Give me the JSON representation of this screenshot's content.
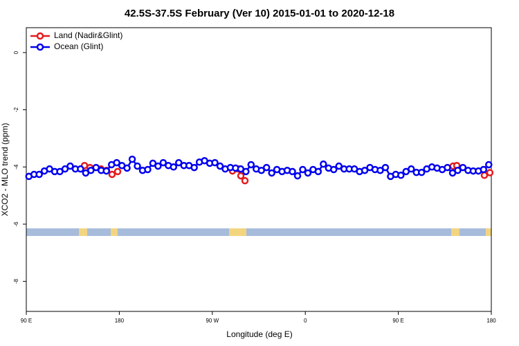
{
  "chart_data": {
    "type": "line",
    "title": "42.5S-37.5S February (Ver 10)   2015-01-01 to 2020-12-18",
    "xlabel": "Longitude (deg E)",
    "ylabel": "XCO2 - MLO trend (ppm)",
    "xlim": [
      90,
      540
    ],
    "xticks": [
      {
        "value": 90,
        "label": "90 E"
      },
      180,
      {
        "value": 270,
        "label": "90 W"
      },
      {
        "value": 360,
        "label": "0"
      },
      {
        "value": 450,
        "label": "90 E"
      },
      {
        "value": 540,
        "label": "180"
      }
    ],
    "ylim": [
      -9.05,
      0.87
    ],
    "yticks": [
      0,
      -2,
      -4,
      -6,
      -8
    ],
    "legend": "top-left",
    "series": [
      {
        "name": "Land (Nadir&Glint)",
        "color": "#e41a1c",
        "x": [
          146.3,
          151.6,
          162.3,
          167.7,
          173,
          178.4,
          null,
          289.5,
          294.9,
          297.6,
          301.6,
          null,
          503,
          506.6,
          null,
          533.3,
          538.6
        ],
        "values": [
          -3.95,
          -4.02,
          -4.07,
          -4.12,
          -4.26,
          -4.16,
          null,
          -4.14,
          -4.07,
          -4.31,
          -4.48,
          null,
          -3.97,
          -3.95,
          null,
          -4.29,
          -4.2
        ]
      },
      {
        "name": "Ocean (Glint)",
        "color": "#0000ee",
        "x": [
          92.5,
          97.5,
          102.5,
          107.5,
          112.5,
          117.5,
          122.5,
          127.5,
          132.5,
          137.5,
          142.5,
          147.5,
          152.5,
          157.5,
          162.5,
          167.5,
          172.5,
          177.5,
          182.5,
          187.5,
          192.5,
          197.5,
          202.5,
          207.5,
          212.5,
          217.5,
          222.5,
          227.5,
          232.5,
          237.5,
          242.5,
          247.5,
          252.5,
          257.5,
          262.5,
          267.5,
          272.5,
          277.5,
          282.5,
          287.5,
          292.5,
          297.5,
          302.5,
          307.5,
          312.5,
          317.5,
          322.5,
          327.5,
          332.5,
          337.5,
          342.5,
          347.5,
          352.5,
          357.5,
          362.5,
          367.5,
          372.5,
          377.5,
          382.5,
          387.5,
          392.5,
          397.5,
          402.5,
          407.5,
          412.5,
          417.5,
          422.5,
          427.5,
          432.5,
          437.5,
          442.5,
          447.5,
          452.5,
          457.5,
          462.5,
          467.5,
          472.5,
          477.5,
          482.5,
          487.5,
          492.5,
          497.5,
          502.5,
          507.5,
          512.5,
          517.5,
          522.5,
          527.5,
          532.5,
          537.5
        ],
        "values": [
          -4.33,
          -4.26,
          -4.26,
          -4.14,
          -4.07,
          -4.16,
          -4.16,
          -4.07,
          -3.97,
          -4.07,
          -4.07,
          -4.21,
          -4.12,
          -4.02,
          -4.12,
          -4.14,
          -3.92,
          -3.85,
          -3.95,
          -4.04,
          -3.73,
          -3.97,
          -4.12,
          -4.09,
          -3.87,
          -3.97,
          -3.85,
          -3.95,
          -4.0,
          -3.85,
          -3.95,
          -3.95,
          -4.02,
          -3.83,
          -3.78,
          -3.87,
          -3.85,
          -3.97,
          -4.07,
          -4.02,
          -4.04,
          -4.07,
          -4.16,
          -3.92,
          -4.07,
          -4.12,
          -4.02,
          -4.21,
          -4.09,
          -4.16,
          -4.12,
          -4.16,
          -4.31,
          -4.09,
          -4.21,
          -4.09,
          -4.16,
          -3.9,
          -4.04,
          -4.09,
          -3.97,
          -4.07,
          -4.07,
          -4.07,
          -4.16,
          -4.12,
          -4.02,
          -4.09,
          -4.12,
          -4.02,
          -4.33,
          -4.26,
          -4.29,
          -4.16,
          -4.07,
          -4.19,
          -4.19,
          -4.07,
          -4.0,
          -4.04,
          -4.09,
          -4.02,
          -4.21,
          -4.12,
          -4.02,
          -4.12,
          -4.14,
          -4.14,
          -4.09,
          -3.92
        ]
      }
    ]
  }
}
